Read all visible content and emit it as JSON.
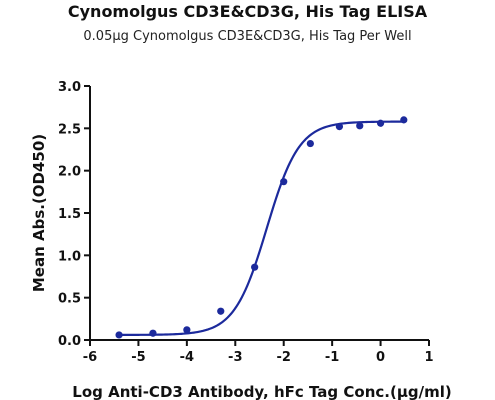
{
  "chart_data": {
    "type": "scatter",
    "title": "Cynomolgus CD3E&CD3G, His Tag ELISA",
    "subtitle": "0.05μg Cynomolgus CD3E&CD3G, His Tag Per Well",
    "xlabel": "Log Anti-CD3 Antibody, hFc Tag Conc.(μg/ml)",
    "ylabel": "Mean Abs.(OD450)",
    "xlim": [
      -6,
      1
    ],
    "ylim": [
      0,
      3
    ],
    "x_ticks": [
      "-6",
      "-5",
      "-4",
      "-3",
      "-2",
      "-1",
      "0",
      "1"
    ],
    "y_ticks": [
      "0.0",
      "0.5",
      "1.0",
      "1.5",
      "2.0",
      "2.5",
      "3.0"
    ],
    "grid": false,
    "legend": "none",
    "color": "#1c2a9c",
    "series": [
      {
        "x": [
          -5.4,
          -4.7,
          -4.0,
          -3.3,
          -2.6,
          -2.0,
          -1.45,
          -0.85,
          -0.43,
          0.0,
          0.48
        ],
        "y": [
          0.06,
          0.08,
          0.12,
          0.34,
          0.86,
          1.87,
          2.32,
          2.52,
          2.53,
          2.56,
          2.6
        ]
      }
    ],
    "fit": {
      "bottom": 0.06,
      "top": 2.58,
      "log_ec50": -2.35,
      "hill": 1.3
    }
  }
}
